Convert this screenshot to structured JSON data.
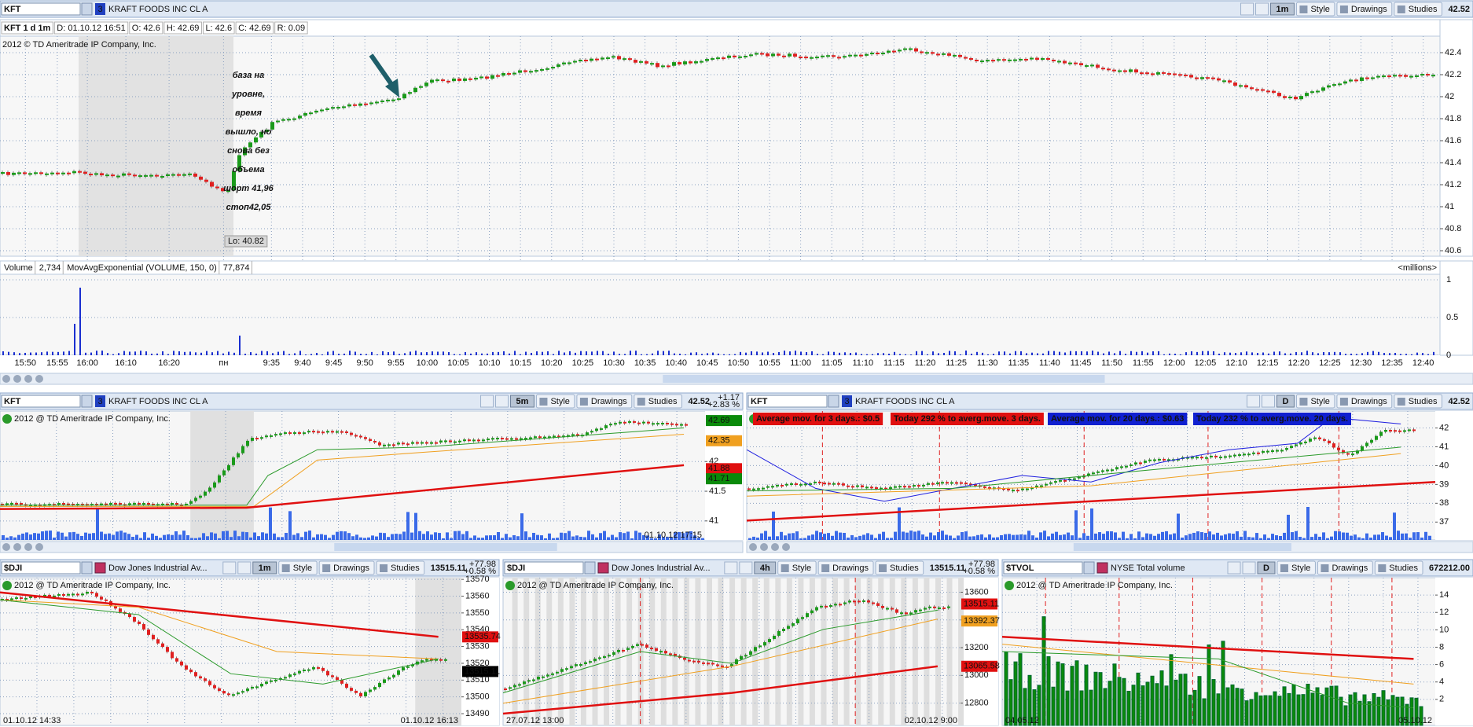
{
  "main": {
    "symbol": "KFT",
    "badge": "3",
    "name": "KRAFT FOODS INC CL A",
    "interval": "1m",
    "buttons": [
      "Style",
      "Drawings",
      "Studies"
    ],
    "last": "42.52",
    "info": [
      "KFT 1 d 1m",
      "D: 01.10.12 16:51",
      "O: 42.6",
      "H: 42.69",
      "L: 42.6",
      "C: 42.69",
      "R: 0.09"
    ],
    "copyright": "2012 © TD Ameritrade IP Company, Inc.",
    "ylim": [
      40.55,
      42.55
    ],
    "yticks": [
      42.4,
      42.2,
      42,
      41.8,
      41.6,
      41.4,
      41.2,
      41,
      40.8,
      40.6
    ],
    "low_label": "Lo: 40.82",
    "annotation": [
      "база на",
      "уровне,",
      "время",
      "вышло, но",
      "снова без",
      "объема",
      "шорт 41,96",
      "стоп42,05"
    ],
    "volume": {
      "legend": [
        "Volume",
        "2,734",
        "MovAvgExponential (VOLUME, 150, 0)",
        "77,874"
      ],
      "unit": "<millions>",
      "ylim": [
        0,
        1.25
      ],
      "yticks": [
        1,
        0.5,
        0
      ]
    },
    "time_labels": [
      "15:50",
      "15:55",
      "16:00",
      "16:10",
      "16:20",
      "пн",
      "9:35",
      "9:40",
      "9:45",
      "9:50",
      "9:55",
      "10:00",
      "10:05",
      "10:10",
      "10:15",
      "10:20",
      "10:25",
      "10:30",
      "10:35",
      "10:40",
      "10:45",
      "10:50",
      "10:55",
      "11:00",
      "11:05",
      "11:10",
      "11:15",
      "11:20",
      "11:25",
      "11:30",
      "11:35",
      "11:40",
      "11:45",
      "11:50",
      "11:55",
      "12:00",
      "12:05",
      "12:10",
      "12:15",
      "12:20",
      "12:25",
      "12:30",
      "12:35",
      "12:40"
    ]
  },
  "panels": [
    {
      "symbol": "KFT",
      "badge": "3",
      "name": "KRAFT FOODS INC CL A",
      "interval": "5m",
      "buttons": [
        "Style",
        "Drawings",
        "Studies"
      ],
      "last": "42.52",
      "change": [
        "+1.17",
        "+2.83 %"
      ],
      "copyright": "2012 @ TD Ameritrade IP Company, Inc.",
      "ylim": [
        40.68,
        42.85
      ],
      "yticks": [
        42,
        41.5,
        41
      ],
      "tags": [
        {
          "value": 42.69,
          "color": "#0a8a0a"
        },
        {
          "value": 42.35,
          "color": "#f0a020"
        },
        {
          "value": 41.88,
          "color": "#e01010"
        },
        {
          "value": 41.71,
          "color": "#0a8a0a"
        }
      ],
      "dates": [
        "01.10.12 17:15"
      ]
    },
    {
      "symbol": "KFT",
      "badge": "3",
      "name": "KRAFT FOODS INC CL A",
      "interval": "D",
      "buttons": [
        "Style",
        "Drawings",
        "Studies"
      ],
      "last": "42.52",
      "ylim": [
        36.05,
        42.9
      ],
      "yticks": [
        42,
        41,
        40,
        39,
        38,
        37
      ],
      "info_boxes": [
        {
          "text": "Average mov. for 3 days.: $0.5",
          "color": "#e01010"
        },
        {
          "text": "Today 292 % to averg.move. 3 days.",
          "color": "#e01010"
        },
        {
          "text": "Average mov. for 20 days.: $0.63",
          "color": "#1020d0"
        },
        {
          "text": "Today 232 % to averg.move. 20 days.",
          "color": "#1020d0"
        }
      ]
    },
    {
      "symbol": "$DJI",
      "name": "Dow Jones Industrial Av...",
      "interval": "1m",
      "buttons": [
        "Style",
        "Drawings",
        "Studies"
      ],
      "last": "13515.11",
      "change": [
        "+77.98",
        "+0.58 %"
      ],
      "copyright": "2012 @ TD Ameritrade IP Company, Inc.",
      "ylim": [
        13483,
        13571
      ],
      "yticks": [
        13570,
        13560,
        13550,
        13540,
        13530,
        13520,
        13510,
        13500,
        13490
      ],
      "tags": [
        {
          "value": 13535.74,
          "color": "#e01010"
        },
        {
          "value": 13515.11,
          "color": "#000000"
        }
      ],
      "dates": [
        "01.10.12 14:33",
        "01.10.12 16:13"
      ]
    },
    {
      "symbol": "$DJI",
      "name": "Dow Jones Industrial Av...",
      "interval": "4h",
      "buttons": [
        "Style",
        "Drawings",
        "Studies"
      ],
      "last": "13515.11",
      "change": [
        "+77.98",
        "+0.58 %"
      ],
      "copyright": "2012 @ TD Ameritrade IP Company, Inc.",
      "ylim": [
        12639,
        13705
      ],
      "yticks": [
        13600,
        13400,
        13200,
        13000,
        12800
      ],
      "tags": [
        {
          "value": 13515.11,
          "color": "#e01010"
        },
        {
          "value": 13392.37,
          "color": "#f0a020"
        },
        {
          "value": 13065.58,
          "color": "#e01010"
        }
      ],
      "dates": [
        "27.07.12 13:00",
        "02.10.12 9:00"
      ]
    },
    {
      "symbol": "$TVOL",
      "name": "NYSE Total volume",
      "interval": "D",
      "buttons": [
        "Style",
        "Drawings",
        "Studies"
      ],
      "last": "672212.00",
      "copyright": "2012 @ TD Ameritrade IP Company, Inc.",
      "ylim": [
        -1,
        16
      ],
      "yticks": [
        14,
        12,
        10,
        8,
        6,
        4,
        2
      ],
      "dates": [
        "04.05.12",
        "05.10.12"
      ]
    }
  ]
}
